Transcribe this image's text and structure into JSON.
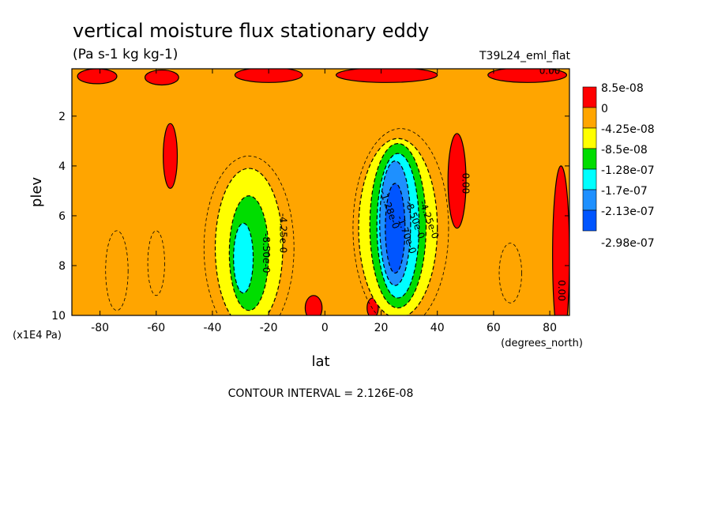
{
  "chart_data": {
    "type": "heatmap",
    "title": "vertical moisture flux stationary eddy",
    "subtitle": "(Pa s-1 kg kg-1)",
    "run_label": "T39L24_eml_flat",
    "xlabel": "lat",
    "x_units": "(degrees_north)",
    "ylabel": "plev",
    "y_units": "(x1E4 Pa)",
    "xlim": [
      -90,
      87
    ],
    "ylim": [
      10,
      0.1
    ],
    "y_inverted": true,
    "x_ticks": [
      -80,
      -60,
      -40,
      -20,
      0,
      20,
      40,
      60,
      80
    ],
    "y_ticks": [
      2,
      4,
      6,
      8,
      10
    ],
    "contour_interval_text": "CONTOUR INTERVAL = 2.126E-08",
    "legend": {
      "placement": "right",
      "labels": [
        "8.5e-08",
        "0",
        "-4.25e-08",
        "-8.5e-08",
        "-1.28e-07",
        "-1.7e-07",
        "-2.13e-07",
        "-2.98e-07"
      ],
      "colors": [
        "#ff0000",
        "#ffa500",
        "#ffff00",
        "#00dd00",
        "#00ffff",
        "#1e90ff",
        "#0055ff"
      ]
    },
    "background_color": "#ffa500",
    "regions": [
      {
        "name": "positive-top-1",
        "color": "#ff0000",
        "lat": -81,
        "plev": 0.4,
        "rx": 7,
        "ry": 0.3
      },
      {
        "name": "positive-top-2",
        "color": "#ff0000",
        "lat": -58,
        "plev": 0.45,
        "rx": 6,
        "ry": 0.3
      },
      {
        "name": "positive-top-3",
        "color": "#ff0000",
        "lat": -20,
        "plev": 0.35,
        "rx": 12,
        "ry": 0.3
      },
      {
        "name": "positive-top-4",
        "color": "#ff0000",
        "lat": 22,
        "plev": 0.35,
        "rx": 18,
        "ry": 0.3
      },
      {
        "name": "positive-top-5",
        "color": "#ff0000",
        "lat": 72,
        "plev": 0.35,
        "rx": 14,
        "ry": 0.3
      },
      {
        "name": "positive-s56",
        "color": "#ff0000",
        "lat": -55,
        "plev": 3.6,
        "rx": 2.5,
        "ry": 1.3
      },
      {
        "name": "positive-n48",
        "color": "#ff0000",
        "lat": 47,
        "plev": 4.6,
        "rx": 3.2,
        "ry": 1.9
      },
      {
        "name": "positive-n84",
        "color": "#ff0000",
        "lat": 84,
        "plev": 7.6,
        "rx": 3,
        "ry": 3.6
      },
      {
        "name": "positive-eq",
        "color": "#ff0000",
        "lat": -4,
        "plev": 9.7,
        "rx": 3,
        "ry": 0.5
      },
      {
        "name": "positive-n17",
        "color": "#ff0000",
        "lat": 17,
        "plev": 9.7,
        "rx": 2,
        "ry": 0.4
      },
      {
        "name": "south-max-c1",
        "color": "#ffff00",
        "lat": -27,
        "plev": 7.3,
        "rx": 12,
        "ry": 3.2
      },
      {
        "name": "south-max-c2",
        "color": "#00dd00",
        "lat": -27,
        "plev": 7.5,
        "rx": 7,
        "ry": 2.3
      },
      {
        "name": "south-max-c3",
        "color": "#00ffff",
        "lat": -29,
        "plev": 7.7,
        "rx": 3.5,
        "ry": 1.4
      },
      {
        "name": "north-max-c1",
        "color": "#ffff00",
        "lat": 26,
        "plev": 6.5,
        "rx": 14,
        "ry": 3.6
      },
      {
        "name": "north-max-c2",
        "color": "#00dd00",
        "lat": 26,
        "plev": 6.4,
        "rx": 10,
        "ry": 3.3
      },
      {
        "name": "north-max-c3",
        "color": "#00ffff",
        "lat": 26,
        "plev": 6.4,
        "rx": 7.5,
        "ry": 2.9
      },
      {
        "name": "north-max-c4",
        "color": "#1e90ff",
        "lat": 25,
        "plev": 6.3,
        "rx": 5.5,
        "ry": 2.5
      },
      {
        "name": "north-max-c5",
        "color": "#0055ff",
        "lat": 25,
        "plev": 6.5,
        "rx": 3.5,
        "ry": 1.8
      }
    ],
    "dashed_contours": [
      {
        "lat": -74,
        "plev": 8.2,
        "rx": 4,
        "ry": 1.6
      },
      {
        "lat": -60,
        "plev": 7.9,
        "rx": 3,
        "ry": 1.3
      },
      {
        "lat": 66,
        "plev": 8.3,
        "rx": 4,
        "ry": 1.2
      },
      {
        "lat": -27,
        "plev": 7.3,
        "rx": 16,
        "ry": 3.7
      },
      {
        "lat": 27,
        "plev": 6.5,
        "rx": 17,
        "ry": 4.0
      }
    ],
    "contour_labels": [
      {
        "text": "0.00",
        "lat": 80,
        "plev": 0.3,
        "rotate": 0
      },
      {
        "text": "-4.25e-0",
        "lat": -16,
        "plev": 6.7,
        "rotate": 90
      },
      {
        "text": "-8.50e-0",
        "lat": -22,
        "plev": 7.5,
        "rotate": 90
      },
      {
        "text": "-4.25e-0",
        "lat": 36,
        "plev": 6.2,
        "rotate": 70
      },
      {
        "text": "-1.28e-0",
        "lat": 22,
        "plev": 5.8,
        "rotate": 70
      },
      {
        "text": "-8.50e-0",
        "lat": 31,
        "plev": 6.2,
        "rotate": 70
      },
      {
        "text": "-1.70e-0",
        "lat": 28,
        "plev": 6.8,
        "rotate": 70
      },
      {
        "text": "0.00",
        "lat": 49,
        "plev": 4.7,
        "rotate": 90
      },
      {
        "text": "0.00",
        "lat": 83,
        "plev": 9.0,
        "rotate": 90
      }
    ]
  }
}
